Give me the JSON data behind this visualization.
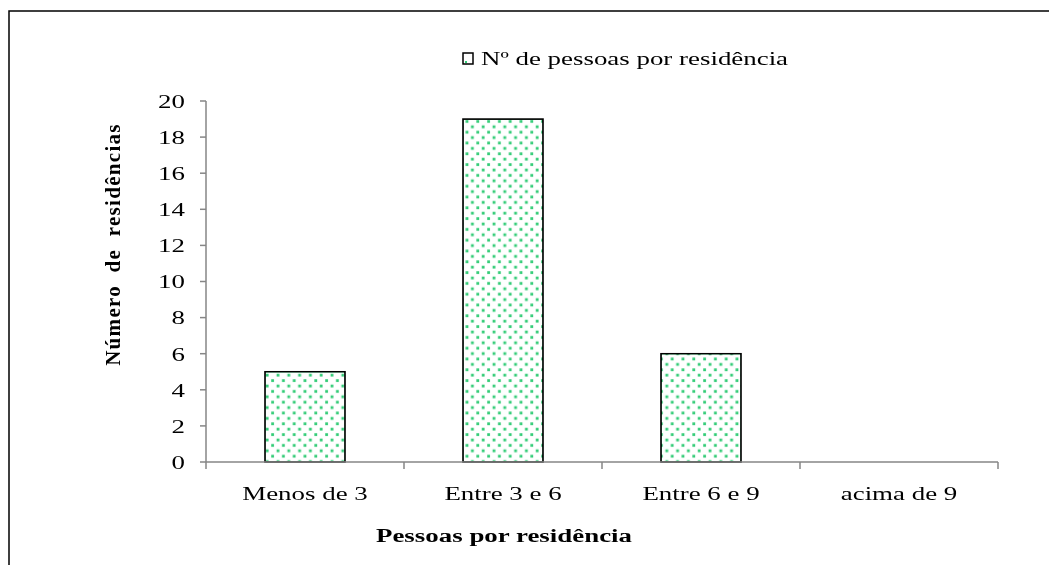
{
  "chart_data": {
    "type": "bar",
    "xlabel": "Pessoas por residência",
    "ylabel": "Número de residências",
    "categories": [
      "Menos de 3",
      "Entre 3 e 6",
      "Entre 6 e 9",
      "acima de 9"
    ],
    "series": [
      {
        "name": "Nº de pessoas por residência",
        "color": "#33cc77",
        "values": [
          5,
          19,
          6,
          0
        ]
      }
    ],
    "ylim": [
      0,
      20
    ],
    "yticks": [
      0,
      2,
      4,
      6,
      8,
      10,
      12,
      14,
      16,
      18,
      20
    ],
    "grid": false,
    "legend": "top"
  }
}
